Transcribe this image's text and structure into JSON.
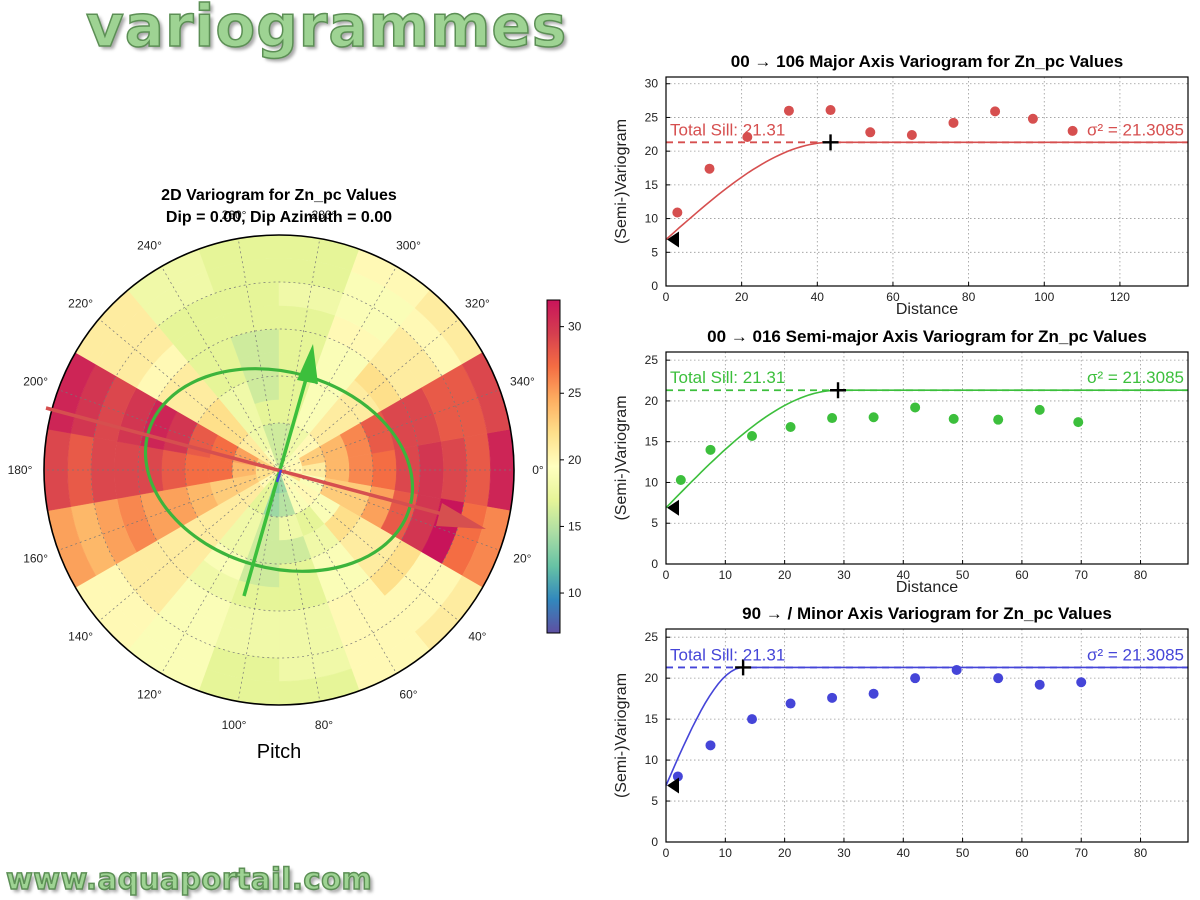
{
  "header": {
    "title": "variogrammes"
  },
  "footer": {
    "url": "www.aquaportail.com"
  },
  "colors": {
    "major": "#d64f4f",
    "semi_major": "#3cbf3c",
    "minor": "#4545d8",
    "ellipse": "#3cb43c"
  },
  "chart_data": [
    {
      "type": "polar-heatmap",
      "title": "2D Variogram for Zn_pc Values",
      "subtitle": "Dip = 0.00, Dip Azimuth = 0.00",
      "xlabel": "Pitch",
      "angle_labels": [
        "0°",
        "20°",
        "40°",
        "60°",
        "80°",
        "100°",
        "120°",
        "140°",
        "160°",
        "180°",
        "200°",
        "220°",
        "240°",
        "260°",
        "280°",
        "300°",
        "320°",
        "340°"
      ],
      "colorbar": {
        "ticks": [
          "10",
          "15",
          "20",
          "25",
          "30"
        ],
        "range": [
          7,
          32
        ]
      },
      "sectors_deg": 20,
      "rings": 10,
      "sector_centers_deg": [
        0,
        20,
        40,
        60,
        80,
        100,
        120,
        140,
        160,
        180,
        200,
        220,
        240,
        260,
        280,
        300,
        320,
        340
      ],
      "values": [
        [
          20,
          21,
          24,
          26,
          27,
          29,
          30,
          29,
          28,
          31
        ],
        [
          22,
          19,
          23,
          23,
          25,
          28,
          30,
          32,
          27,
          26
        ],
        [
          19,
          20,
          19,
          22,
          21,
          21,
          22,
          20,
          20,
          21
        ],
        [
          20,
          19,
          17,
          18,
          19,
          19,
          20,
          20,
          20,
          20
        ],
        [
          14,
          15,
          18,
          16,
          17,
          17,
          18,
          18,
          18,
          17
        ],
        [
          13,
          14,
          16,
          16,
          16,
          17,
          18,
          18,
          17,
          17
        ],
        [
          17,
          17,
          18,
          18,
          19,
          18,
          19,
          19,
          19,
          19
        ],
        [
          20,
          21,
          21,
          21,
          21,
          21,
          21,
          21,
          20,
          20
        ],
        [
          22,
          23,
          23,
          24,
          25,
          25,
          26,
          25,
          24,
          25
        ],
        [
          22,
          24,
          27,
          27,
          28,
          29,
          29,
          29,
          28,
          29
        ],
        [
          23,
          25,
          27,
          28,
          30,
          31,
          30,
          29,
          30,
          31
        ],
        [
          21,
          21,
          22,
          22,
          21,
          21,
          20,
          21,
          21,
          21
        ],
        [
          19,
          18,
          18,
          18,
          17,
          17,
          17,
          17,
          18,
          18
        ],
        [
          16,
          16,
          17,
          16,
          16,
          16,
          17,
          17,
          17,
          17
        ],
        [
          16,
          16,
          17,
          17,
          17,
          17,
          17,
          18,
          17,
          17
        ],
        [
          18,
          18,
          19,
          19,
          19,
          19,
          20,
          19,
          19,
          20
        ],
        [
          19,
          20,
          21,
          21,
          21,
          22,
          21,
          21,
          20,
          21
        ],
        [
          20,
          23,
          24,
          26,
          28,
          29,
          29,
          28,
          28,
          29
        ]
      ],
      "ellipse": {
        "major": 1.0,
        "minor": 0.72,
        "major_angle_deg": 16
      }
    },
    {
      "type": "scatter",
      "title": "00 → 106 Major Axis Variogram for Zn_pc Values",
      "xlabel": "Distance",
      "ylabel": "(Semi-)Variogram",
      "xlim": [
        0,
        138
      ],
      "ylim": [
        0,
        31
      ],
      "xticks": [
        0,
        20,
        40,
        60,
        80,
        100,
        120
      ],
      "yticks": [
        0,
        5,
        10,
        15,
        20,
        25,
        30
      ],
      "sill_label": "Total Sill: 21.31",
      "sigma_label": "σ² = 21.3085",
      "sill": 21.31,
      "nugget": 6.9,
      "range": 43.5,
      "x": [
        3,
        11.5,
        21.5,
        32.5,
        43.5,
        54,
        65,
        76,
        87,
        97,
        107.5
      ],
      "y": [
        10.9,
        17.4,
        22.1,
        26.0,
        26.1,
        22.8,
        22.4,
        24.2,
        25.9,
        24.8,
        23.0
      ]
    },
    {
      "type": "scatter",
      "title": "00 → 016 Semi-major Axis Variogram for Zn_pc Values",
      "xlabel": "Distance",
      "ylabel": "(Semi-)Variogram",
      "xlim": [
        0,
        88
      ],
      "ylim": [
        0,
        26
      ],
      "xticks": [
        0,
        10,
        20,
        30,
        40,
        50,
        60,
        70,
        80
      ],
      "yticks": [
        0,
        5,
        10,
        15,
        20,
        25
      ],
      "sill_label": "Total Sill: 21.31",
      "sigma_label": "σ² = 21.3085",
      "sill": 21.31,
      "nugget": 6.9,
      "range": 29,
      "x": [
        2.5,
        7.5,
        14.5,
        21,
        28,
        35,
        42,
        48.5,
        56,
        63,
        69.5
      ],
      "y": [
        10.3,
        14.0,
        15.7,
        16.8,
        17.9,
        18.0,
        19.2,
        17.8,
        17.7,
        18.9,
        17.4
      ]
    },
    {
      "type": "scatter",
      "title": "90 → / Minor Axis Variogram for Zn_pc Values",
      "xlabel": "",
      "ylabel": "(Semi-)Variogram",
      "xlim": [
        0,
        88
      ],
      "ylim": [
        0,
        26
      ],
      "xticks": [
        0,
        10,
        20,
        30,
        40,
        50,
        60,
        70,
        80
      ],
      "yticks": [
        0,
        5,
        10,
        15,
        20,
        25
      ],
      "sill_label": "Total Sill: 21.31",
      "sigma_label": "σ² = 21.3085",
      "sill": 21.31,
      "nugget": 6.9,
      "range": 13,
      "x": [
        2,
        7.5,
        14.5,
        21,
        28,
        35,
        42,
        49,
        56,
        63,
        70
      ],
      "y": [
        8.0,
        11.8,
        15.0,
        16.9,
        17.6,
        18.1,
        20.0,
        21.0,
        20.0,
        19.2,
        19.5
      ]
    }
  ]
}
